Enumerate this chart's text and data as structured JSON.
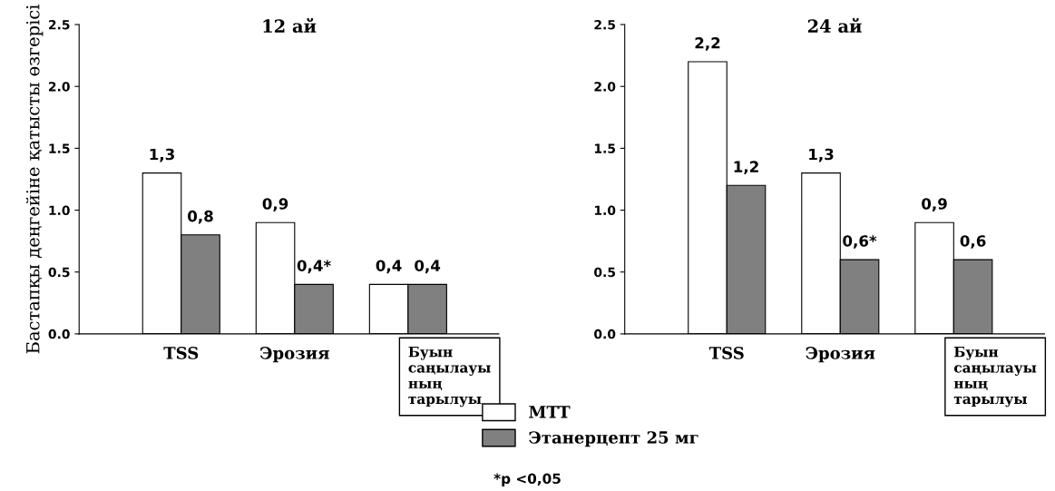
{
  "chart_data": [
    {
      "type": "bar",
      "title": "12 ай",
      "ylabel": "Бастапқы деңгейіне қатысты өзгерісі",
      "categories": [
        "TSS",
        "Эрозия",
        "Буын саңылауы ның тарылуы"
      ],
      "series": [
        {
          "name": "MTT",
          "color": "#ffffff",
          "values": [
            1.3,
            0.9,
            0.4
          ],
          "value_labels": [
            "1,3",
            "0,9",
            "0,4"
          ]
        },
        {
          "name": "Этанерцепт 25 мг",
          "color": "#808080",
          "values": [
            0.8,
            0.4,
            0.4
          ],
          "value_labels": [
            "0,8",
            "0,4*",
            "0,4"
          ]
        }
      ],
      "ylim": [
        0,
        2.5
      ],
      "yticks": [
        {
          "value": 0,
          "label": "0.0"
        },
        {
          "value": 0.5,
          "label": "0.5"
        },
        {
          "value": 1,
          "label": "1.0"
        },
        {
          "value": 1.5,
          "label": "1.5"
        },
        {
          "value": 2,
          "label": "2.0"
        },
        {
          "value": 2.5,
          "label": "2.5"
        }
      ],
      "grid": false,
      "legend": "bottom",
      "annotations": [
        "*p <0,05"
      ]
    },
    {
      "type": "bar",
      "title": "24 ай",
      "categories": [
        "TSS",
        "Эрозия",
        "Буын саңылауы ның тарылуы"
      ],
      "series": [
        {
          "color": "#ffffff",
          "values": [
            2.2,
            1.3,
            0.9
          ],
          "value_labels": [
            "2,2",
            "1,3",
            "0,9"
          ]
        },
        {
          "color": "#808080",
          "values": [
            1.2,
            0.6,
            0.6
          ],
          "value_labels": [
            "1,2",
            "0,6*",
            "0,6"
          ]
        }
      ],
      "ylim": [
        0,
        2.5
      ],
      "yticks": [
        {
          "value": 0,
          "label": "0.0"
        },
        {
          "value": 0.5,
          "label": "0.5"
        },
        {
          "value": 1,
          "label": "1.0"
        },
        {
          "value": 1.5,
          "label": "1.5"
        },
        {
          "value": 2,
          "label": "2.0"
        },
        {
          "value": 2.5,
          "label": "2.5"
        }
      ],
      "grid": false
    }
  ]
}
